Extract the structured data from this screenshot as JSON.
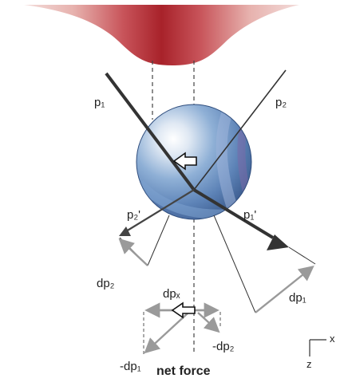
{
  "labels": {
    "p1": "p₁",
    "p2": "p₂",
    "p1_prime": "p₁'",
    "p2_prime": "p₂'",
    "dp1": "dp₁",
    "dp2": "dp₂",
    "dpx": "dpₓ",
    "neg_dp1": "-dp₁",
    "neg_dp2": "-dp₂",
    "net_force": "net force",
    "axis_x": "x",
    "axis_z": "z"
  },
  "colors": {
    "beam_dark": "#a8222a",
    "beam_light": "#f1d4d2",
    "sphere_light": "#eef2f8",
    "sphere_blue": "#5f84b8",
    "sphere_dark": "#3e5f92",
    "arrow_gray": "#9a9a9a",
    "line_dark": "#333333"
  },
  "icons": [
    "net-force-arrow-icon",
    "axis-icon"
  ]
}
